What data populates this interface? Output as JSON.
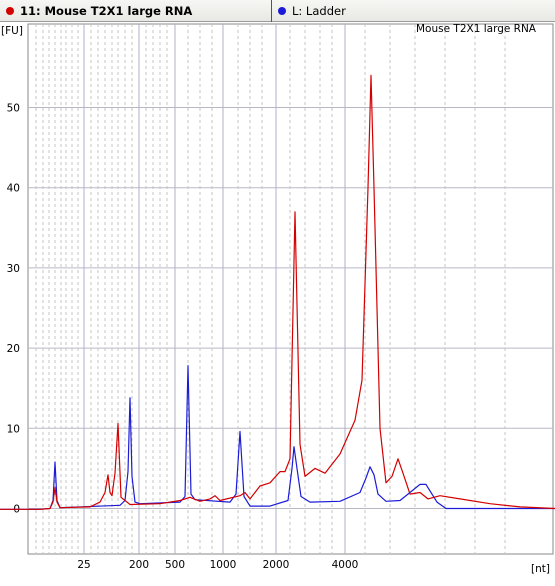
{
  "tabs": [
    {
      "label": "11: Mouse T2X1 large  RNA",
      "color": "#d40000"
    },
    {
      "label": "L: Ladder",
      "color": "#1c1cd8"
    }
  ],
  "chart_data": {
    "type": "line",
    "title": "Mouse T2X1 large  RNA",
    "xlabel": "[nt]",
    "ylabel": "[FU]",
    "ylim": [
      -5.5,
      60
    ],
    "yticks": [
      0,
      10,
      20,
      30,
      40,
      50
    ],
    "xticks": [
      25,
      200,
      500,
      1000,
      2000,
      4000
    ],
    "grid": true,
    "series": [
      {
        "name": "11: Mouse T2X1 large  RNA",
        "color": "#d40000",
        "points": [
          [
            0,
            -0.1
          ],
          [
            40,
            -0.1
          ],
          [
            50,
            0.0
          ],
          [
            53,
            0.8
          ],
          [
            55,
            2.6
          ],
          [
            57,
            0.8
          ],
          [
            60,
            0.1
          ],
          [
            90,
            0.2
          ],
          [
            100,
            0.8
          ],
          [
            105,
            2.0
          ],
          [
            108,
            4.2
          ],
          [
            110,
            2.0
          ],
          [
            112,
            1.6
          ],
          [
            115,
            4.4
          ],
          [
            118,
            10.6
          ],
          [
            121,
            1.4
          ],
          [
            125,
            1.0
          ],
          [
            130,
            0.5
          ],
          [
            160,
            0.6
          ],
          [
            180,
            1.0
          ],
          [
            190,
            1.4
          ],
          [
            200,
            0.9
          ],
          [
            210,
            1.2
          ],
          [
            215,
            1.6
          ],
          [
            220,
            1.0
          ],
          [
            240,
            1.6
          ],
          [
            245,
            2.0
          ],
          [
            250,
            1.2
          ],
          [
            260,
            2.8
          ],
          [
            270,
            3.2
          ],
          [
            280,
            4.6
          ],
          [
            285,
            4.6
          ],
          [
            290,
            6.2
          ],
          [
            295,
            37.0
          ],
          [
            300,
            8.0
          ],
          [
            305,
            4.0
          ],
          [
            315,
            5.0
          ],
          [
            325,
            4.4
          ],
          [
            340,
            6.8
          ],
          [
            355,
            11.0
          ],
          [
            362,
            16.0
          ],
          [
            368,
            40.0
          ],
          [
            371,
            54.0
          ],
          [
            374,
            40.0
          ],
          [
            380,
            10.0
          ],
          [
            386,
            3.2
          ],
          [
            392,
            4.0
          ],
          [
            398,
            6.2
          ],
          [
            403,
            4.4
          ],
          [
            410,
            1.8
          ],
          [
            420,
            2.0
          ],
          [
            428,
            1.2
          ],
          [
            440,
            1.6
          ],
          [
            460,
            1.2
          ],
          [
            490,
            0.6
          ],
          [
            520,
            0.2
          ],
          [
            555,
            0.0
          ]
        ]
      },
      {
        "name": "L: Ladder",
        "color": "#1c1cd8",
        "points": [
          [
            0,
            -0.1
          ],
          [
            40,
            -0.1
          ],
          [
            50,
            0.0
          ],
          [
            53,
            1.0
          ],
          [
            55,
            5.8
          ],
          [
            57,
            1.0
          ],
          [
            60,
            0.1
          ],
          [
            120,
            0.4
          ],
          [
            125,
            1.0
          ],
          [
            128,
            4.6
          ],
          [
            130,
            13.8
          ],
          [
            132,
            4.0
          ],
          [
            135,
            0.8
          ],
          [
            140,
            0.6
          ],
          [
            180,
            0.8
          ],
          [
            185,
            1.5
          ],
          [
            188,
            17.8
          ],
          [
            191,
            1.8
          ],
          [
            195,
            1.1
          ],
          [
            230,
            0.8
          ],
          [
            236,
            1.8
          ],
          [
            240,
            9.6
          ],
          [
            244,
            1.5
          ],
          [
            250,
            0.3
          ],
          [
            270,
            0.3
          ],
          [
            288,
            1.0
          ],
          [
            292,
            5.0
          ],
          [
            294,
            7.7
          ],
          [
            297,
            5.0
          ],
          [
            301,
            1.5
          ],
          [
            310,
            0.8
          ],
          [
            340,
            0.9
          ],
          [
            360,
            2.0
          ],
          [
            366,
            3.8
          ],
          [
            370,
            5.2
          ],
          [
            374,
            4.2
          ],
          [
            378,
            1.8
          ],
          [
            386,
            0.9
          ],
          [
            400,
            1.0
          ],
          [
            410,
            2.0
          ],
          [
            420,
            3.0
          ],
          [
            426,
            3.0
          ],
          [
            430,
            2.2
          ],
          [
            437,
            0.8
          ],
          [
            446,
            0.0
          ],
          [
            555,
            0.0
          ]
        ]
      }
    ]
  }
}
